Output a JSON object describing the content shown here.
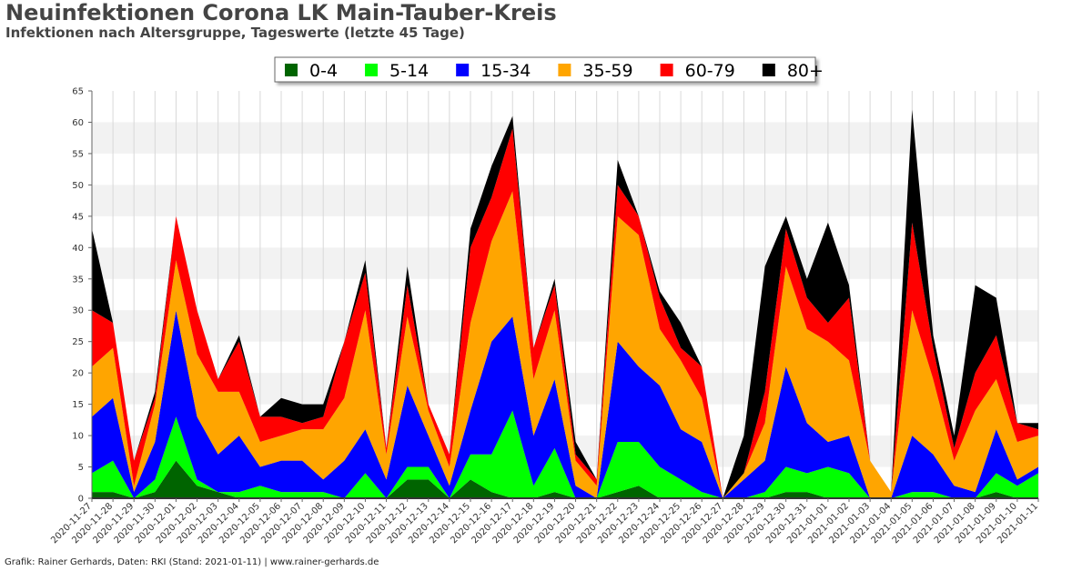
{
  "title": "Neuinfektionen Corona LK Main-Tauber-Kreis",
  "subtitle": "Infektionen nach Altersgruppe, Tageswerte (letzte 45 Tage)",
  "footer": "Grafik: Rainer Gerhards, Daten: RKI (Stand: 2021-01-11) | www.rainer-gerhards.de",
  "chart_data": {
    "type": "area",
    "stacked": true,
    "ylim": [
      0,
      65
    ],
    "yticks": [
      0,
      5,
      10,
      15,
      20,
      25,
      30,
      35,
      40,
      45,
      50,
      55,
      60,
      65
    ],
    "grid": "horizontal alternating bands and vertical lines",
    "legend_position": "top-center",
    "x": [
      "2020-11-27",
      "2020-11-28",
      "2020-11-29",
      "2020-11-30",
      "2020-12-01",
      "2020-12-02",
      "2020-12-03",
      "2020-12-04",
      "2020-12-05",
      "2020-12-06",
      "2020-12-07",
      "2020-12-08",
      "2020-12-09",
      "2020-12-10",
      "2020-12-11",
      "2020-12-12",
      "2020-12-13",
      "2020-12-14",
      "2020-12-15",
      "2020-12-16",
      "2020-12-17",
      "2020-12-18",
      "2020-12-19",
      "2020-12-20",
      "2020-12-21",
      "2020-12-22",
      "2020-12-23",
      "2020-12-24",
      "2020-12-25",
      "2020-12-26",
      "2020-12-27",
      "2020-12-28",
      "2020-12-29",
      "2020-12-30",
      "2020-12-31",
      "2021-01-01",
      "2021-01-02",
      "2021-01-03",
      "2021-01-04",
      "2021-01-05",
      "2021-01-06",
      "2021-01-07",
      "2021-01-08",
      "2021-01-09",
      "2021-01-10",
      "2021-01-11"
    ],
    "xticks": [
      "2020-11-27",
      "2020-11-28",
      "2020-11-29",
      "2020-11-30",
      "2020-12-01",
      "2020-12-02",
      "2020-12-03",
      "2020-12-04",
      "2020-12-05",
      "2020-12-06",
      "2020-12-07",
      "2020-12-08",
      "2020-12-09",
      "2020-12-10",
      "2020-12-11",
      "2020-12-12",
      "2020-12-13",
      "2020-12-14",
      "2020-12-15",
      "2020-12-16",
      "2020-12-17",
      "2020-12-18",
      "2020-12-19",
      "2020-12-20",
      "2020-12-21",
      "2020-12-22",
      "2020-12-23",
      "2020-12-24",
      "2020-12-25",
      "2020-12-26",
      "2020-12-27",
      "2020-12-28",
      "2020-12-29",
      "2020-12-30",
      "2020-12-31",
      "2021-01-01",
      "2021-01-02",
      "2021-01-03",
      "2021-01-04",
      "2021-01-05",
      "2021-01-06",
      "2021-01-07",
      "2021-01-08",
      "2021-01-09",
      "2021-01-10",
      "2021-01-11"
    ],
    "series": [
      {
        "name": "0-4",
        "color": "#006400",
        "values": [
          1,
          1,
          0,
          1,
          6,
          2,
          1,
          0,
          0,
          0,
          0,
          0,
          0,
          0,
          0,
          3,
          3,
          0,
          3,
          1,
          0,
          0,
          1,
          0,
          0,
          1,
          2,
          0,
          0,
          0,
          0,
          0,
          0,
          1,
          1,
          0,
          0,
          0,
          0,
          0,
          0,
          0,
          0,
          1,
          0,
          0
        ]
      },
      {
        "name": "5-14",
        "color": "#00ff00",
        "values": [
          3,
          5,
          0,
          2,
          7,
          1,
          0,
          1,
          2,
          1,
          1,
          1,
          0,
          4,
          0,
          2,
          2,
          0,
          4,
          6,
          14,
          2,
          7,
          0,
          0,
          8,
          7,
          5,
          3,
          1,
          0,
          0,
          1,
          4,
          3,
          5,
          4,
          0,
          0,
          1,
          1,
          0,
          0,
          3,
          2,
          4
        ]
      },
      {
        "name": "15-34",
        "color": "#0000ff",
        "values": [
          9,
          10,
          1,
          6,
          17,
          10,
          6,
          9,
          3,
          5,
          5,
          2,
          6,
          7,
          3,
          13,
          5,
          2,
          7,
          18,
          15,
          8,
          11,
          2,
          0,
          16,
          12,
          13,
          8,
          8,
          0,
          3,
          5,
          16,
          8,
          4,
          6,
          0,
          0,
          9,
          6,
          2,
          1,
          7,
          1,
          1
        ]
      },
      {
        "name": "35-59",
        "color": "#ffa500",
        "values": [
          8,
          8,
          1,
          6,
          8,
          10,
          10,
          7,
          4,
          4,
          5,
          8,
          10,
          19,
          4,
          11,
          4,
          3,
          14,
          16,
          20,
          9,
          11,
          4,
          2,
          20,
          21,
          9,
          11,
          7,
          0,
          1,
          6,
          16,
          15,
          16,
          12,
          6,
          1,
          20,
          12,
          4,
          13,
          8,
          6,
          5
        ]
      },
      {
        "name": "60-79",
        "color": "#ff0000",
        "values": [
          9,
          4,
          4,
          1,
          7,
          7,
          2,
          8,
          4,
          3,
          1,
          2,
          9,
          6,
          1,
          5,
          1,
          2,
          12,
          7,
          10,
          5,
          4,
          1,
          1,
          5,
          3,
          5,
          2,
          5,
          0,
          0,
          5,
          6,
          5,
          3,
          10,
          0,
          0,
          14,
          5,
          2,
          6,
          7,
          3,
          1
        ]
      },
      {
        "name": "80+",
        "color": "#000000",
        "values": [
          13,
          0,
          0,
          1,
          0,
          0,
          0,
          1,
          0,
          3,
          3,
          2,
          0,
          2,
          0,
          3,
          0,
          0,
          3,
          5,
          2,
          0,
          1,
          2,
          0,
          4,
          0,
          1,
          4,
          0,
          0,
          6,
          20,
          2,
          3,
          16,
          2,
          0,
          0,
          18,
          2,
          2,
          14,
          6,
          0,
          1
        ]
      }
    ]
  }
}
